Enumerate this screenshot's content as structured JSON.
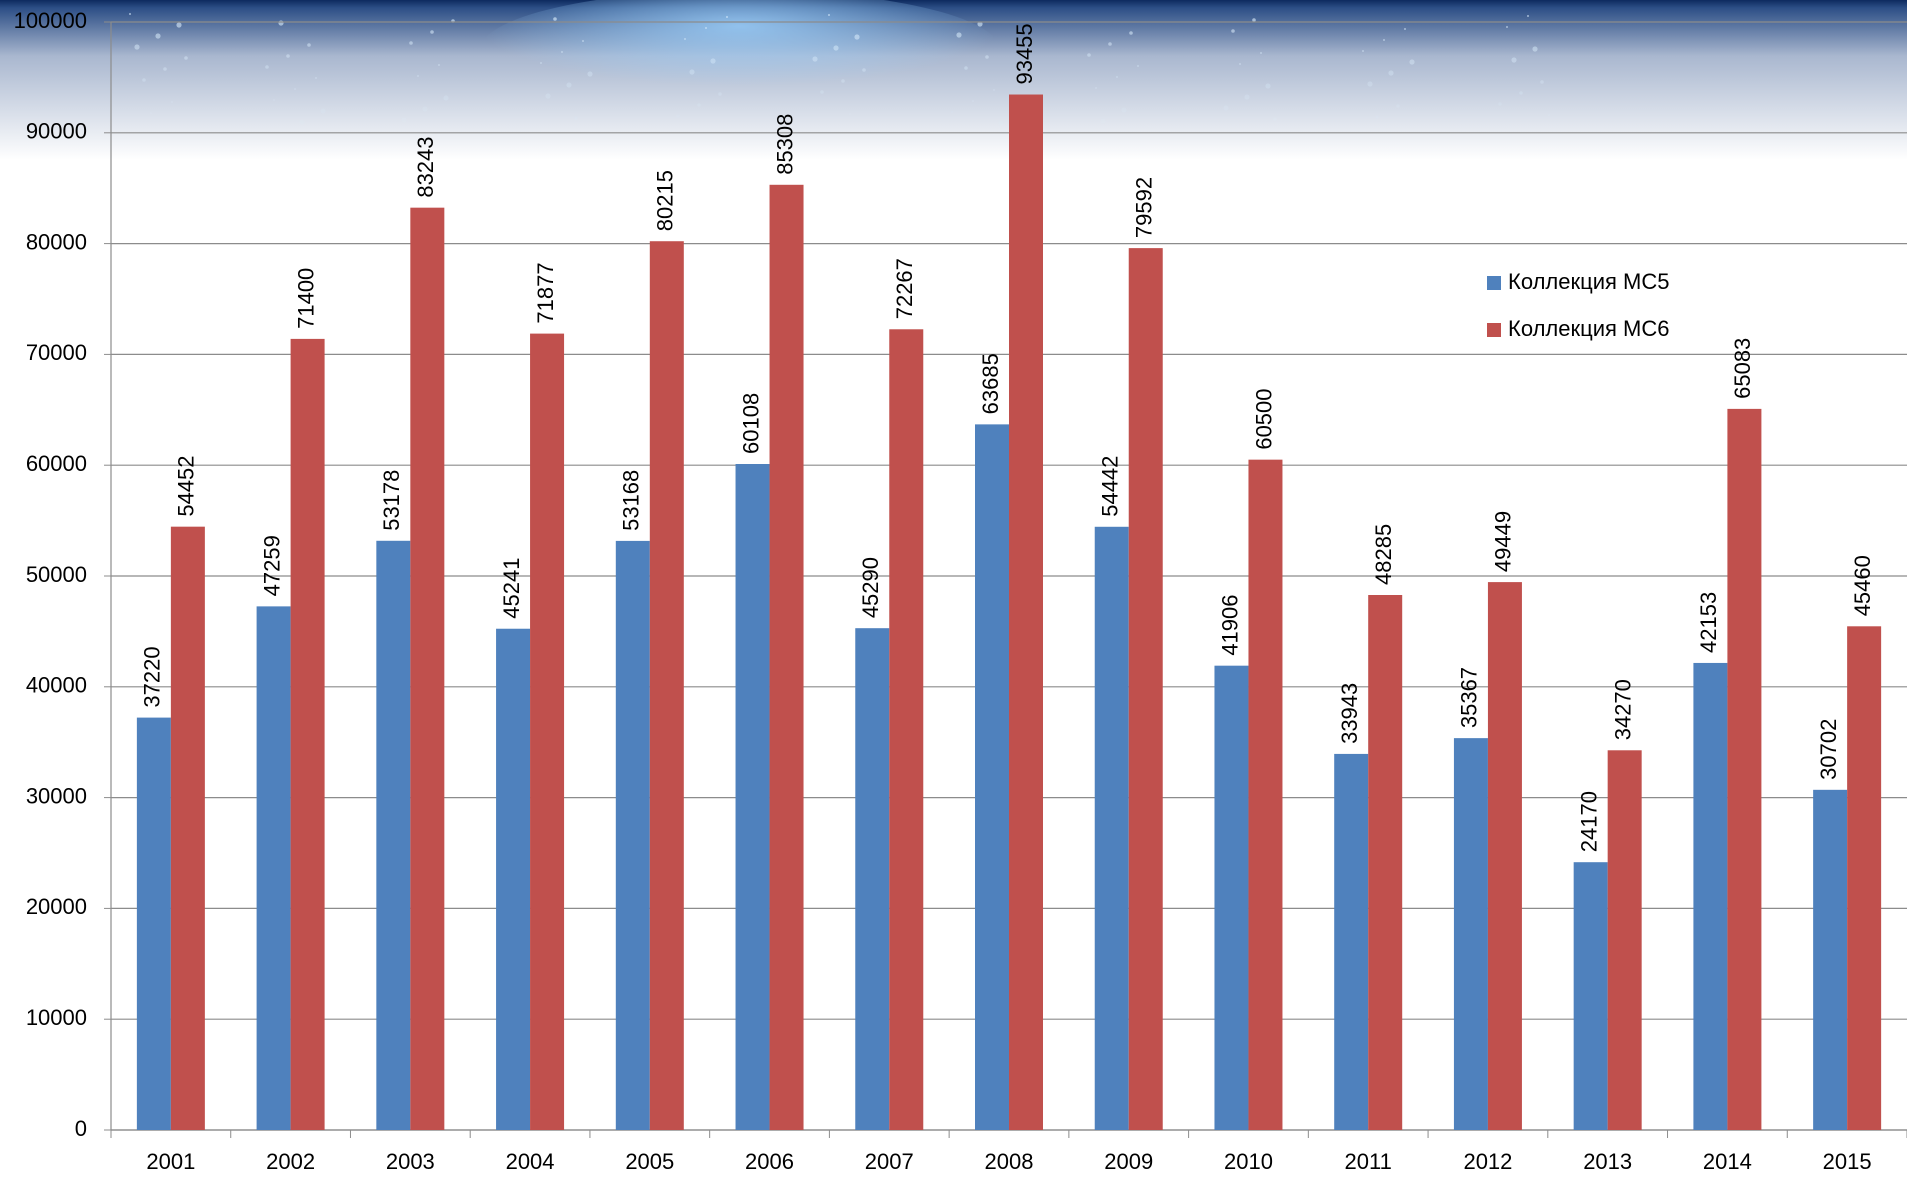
{
  "chart_data": {
    "type": "bar",
    "categories": [
      "2001",
      "2002",
      "2003",
      "2004",
      "2005",
      "2006",
      "2007",
      "2008",
      "2009",
      "2010",
      "2011",
      "2012",
      "2013",
      "2014",
      "2015"
    ],
    "series": [
      {
        "name": "Коллекция МС5",
        "color": "#4f81bd",
        "values": [
          37220,
          47259,
          53178,
          45241,
          53168,
          60108,
          45290,
          63685,
          54442,
          41906,
          33943,
          35367,
          24170,
          42153,
          30702
        ]
      },
      {
        "name": "Коллекция МС6",
        "color": "#c0504d",
        "values": [
          54452,
          71400,
          83243,
          71877,
          80215,
          85308,
          72267,
          93455,
          79592,
          60500,
          48285,
          49449,
          34270,
          65083,
          45460
        ]
      }
    ],
    "ylim": [
      0,
      100000
    ],
    "yticks": [
      0,
      10000,
      20000,
      30000,
      40000,
      50000,
      60000,
      70000,
      80000,
      90000,
      100000
    ],
    "grid": true,
    "legend": "right"
  }
}
